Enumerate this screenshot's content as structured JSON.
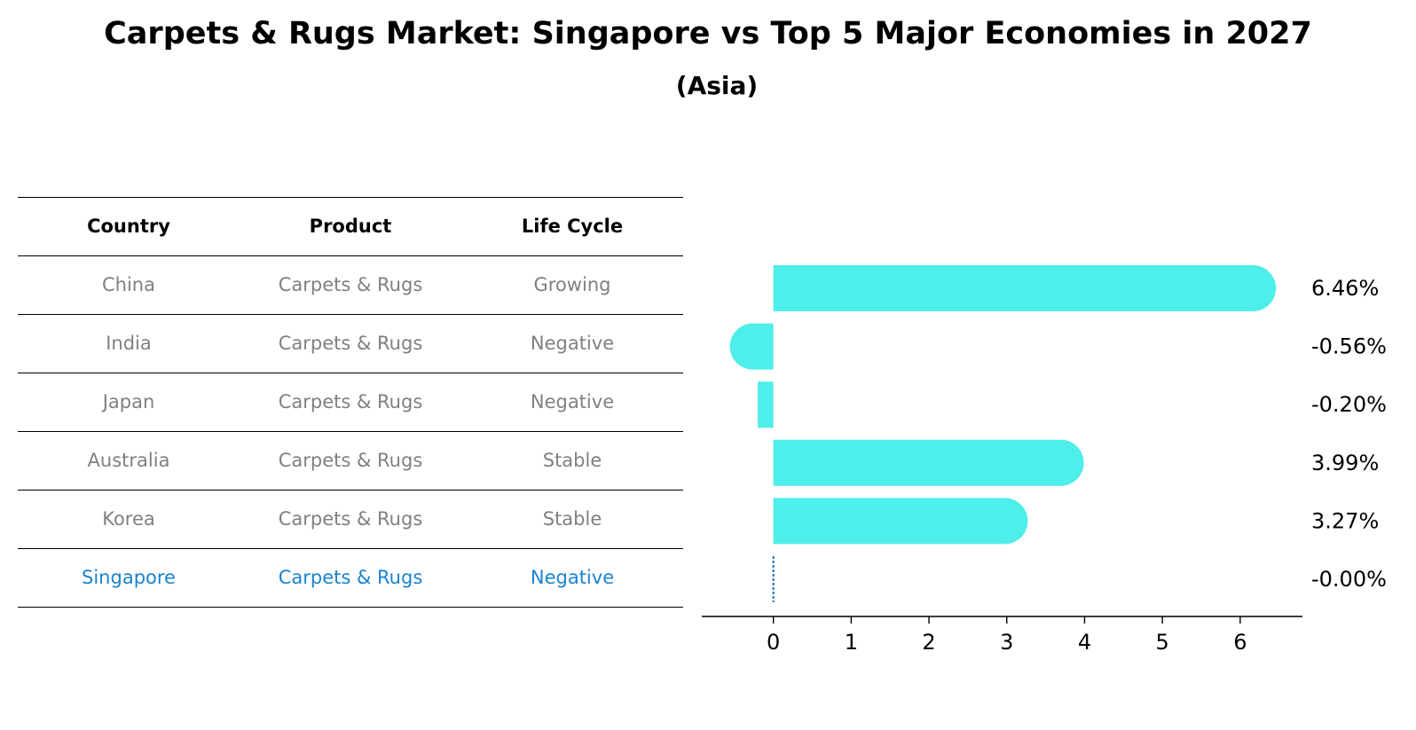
{
  "title": "Carpets & Rugs Market: Singapore vs Top 5 Major Economies in 2027",
  "subtitle": "(Asia)",
  "table": {
    "headers": [
      "Country",
      "Product",
      "Life Cycle"
    ],
    "rows": [
      {
        "country": "China",
        "product": "Carpets & Rugs",
        "life_cycle": "Growing"
      },
      {
        "country": "India",
        "product": "Carpets & Rugs",
        "life_cycle": "Negative"
      },
      {
        "country": "Japan",
        "product": "Carpets & Rugs",
        "life_cycle": "Negative"
      },
      {
        "country": "Australia",
        "product": "Carpets & Rugs",
        "life_cycle": "Stable"
      },
      {
        "country": "Korea",
        "product": "Carpets & Rugs",
        "life_cycle": "Stable"
      },
      {
        "country": "Singapore",
        "product": "Carpets & Rugs",
        "life_cycle": "Negative"
      }
    ],
    "highlight_row": 5
  },
  "colors": {
    "bar": "#4eeeea",
    "highlight_text": "#1a83d0",
    "muted_text": "#808080",
    "dotted_line": "#1f6fb5"
  },
  "chart_data": {
    "type": "bar",
    "orientation": "horizontal",
    "categories": [
      "China",
      "India",
      "Japan",
      "Australia",
      "Korea",
      "Singapore"
    ],
    "values": [
      6.46,
      -0.56,
      -0.2,
      3.99,
      3.27,
      -0.0
    ],
    "value_labels": [
      "6.46%",
      "-0.56%",
      "-0.20%",
      "3.99%",
      "3.27%",
      "-0.00%"
    ],
    "xlim": [
      -0.92,
      6.8
    ],
    "xticks": [
      0,
      1,
      2,
      3,
      4,
      5,
      6
    ],
    "grid": false,
    "legend": "none"
  }
}
